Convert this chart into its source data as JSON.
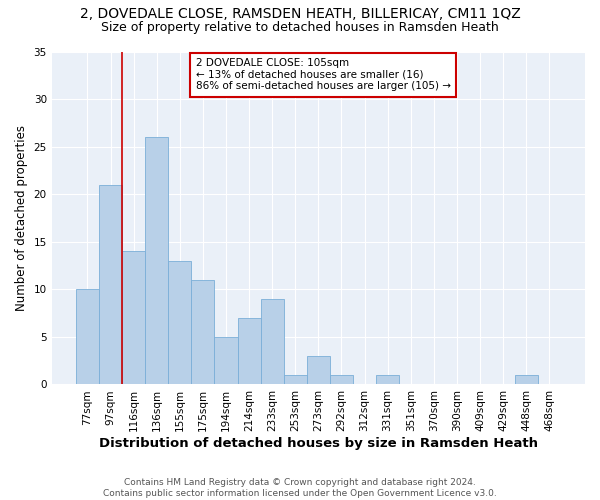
{
  "title1": "2, DOVEDALE CLOSE, RAMSDEN HEATH, BILLERICAY, CM11 1QZ",
  "title2": "Size of property relative to detached houses in Ramsden Heath",
  "xlabel": "Distribution of detached houses by size in Ramsden Heath",
  "ylabel": "Number of detached properties",
  "categories": [
    "77sqm",
    "97sqm",
    "116sqm",
    "136sqm",
    "155sqm",
    "175sqm",
    "194sqm",
    "214sqm",
    "233sqm",
    "253sqm",
    "273sqm",
    "292sqm",
    "312sqm",
    "331sqm",
    "351sqm",
    "370sqm",
    "390sqm",
    "409sqm",
    "429sqm",
    "448sqm",
    "468sqm"
  ],
  "values": [
    10,
    21,
    14,
    26,
    13,
    11,
    5,
    7,
    9,
    1,
    3,
    1,
    0,
    1,
    0,
    0,
    0,
    0,
    0,
    1,
    0
  ],
  "bar_color": "#b8d0e8",
  "bar_edge_color": "#7aaed8",
  "vline_x": 1.5,
  "vline_color": "#cc0000",
  "annotation_text": "2 DOVEDALE CLOSE: 105sqm\n← 13% of detached houses are smaller (16)\n86% of semi-detached houses are larger (105) →",
  "annotation_box_color": "#ffffff",
  "annotation_edge_color": "#cc0000",
  "ylim": [
    0,
    35
  ],
  "yticks": [
    0,
    5,
    10,
    15,
    20,
    25,
    30,
    35
  ],
  "background_color": "#eaf0f8",
  "footer": "Contains HM Land Registry data © Crown copyright and database right 2024.\nContains public sector information licensed under the Open Government Licence v3.0.",
  "title1_fontsize": 10,
  "title2_fontsize": 9,
  "xlabel_fontsize": 9.5,
  "ylabel_fontsize": 8.5,
  "tick_fontsize": 7.5,
  "footer_fontsize": 6.5,
  "annotation_fontsize": 7.5
}
